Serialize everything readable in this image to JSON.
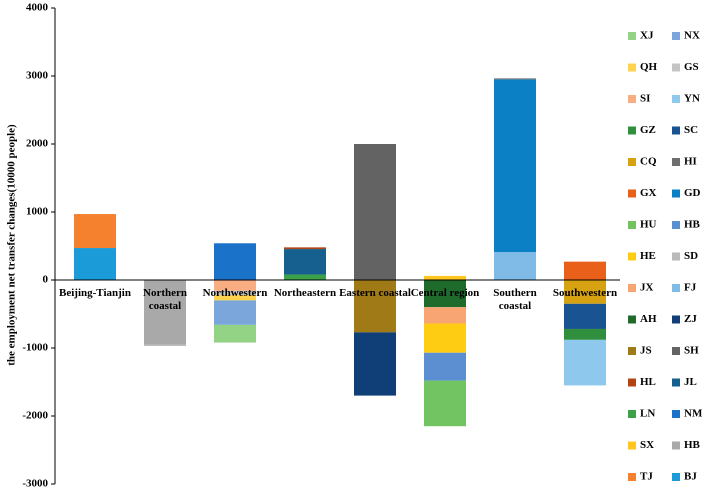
{
  "chart_data": {
    "type": "bar",
    "stacked": true,
    "ylabel": "the employment net transfer changes(10000 people)",
    "ylim": [
      -3000,
      4000
    ],
    "yticks": [
      -3000,
      -2000,
      -1000,
      0,
      1000,
      2000,
      3000,
      4000
    ],
    "categories": [
      "Beijing-Tianjin",
      "Northern coastal",
      "Northwestern",
      "Northeastern",
      "Eastern coastal",
      "Central region",
      "Southern coastal",
      "Southwestern"
    ],
    "series": [
      {
        "name": "XJ",
        "color": "#92d385",
        "values": [
          null,
          null,
          -260,
          null,
          null,
          null,
          null,
          null
        ]
      },
      {
        "name": "NX",
        "color": "#7aa6dc",
        "values": [
          null,
          null,
          -360,
          null,
          null,
          null,
          null,
          null
        ]
      },
      {
        "name": "QH",
        "color": "#ffd34d",
        "values": [
          null,
          null,
          -80,
          null,
          null,
          null,
          null,
          null
        ]
      },
      {
        "name": "GS",
        "color": "#c4c4c4",
        "values": [
          null,
          null,
          -60,
          null,
          null,
          null,
          null,
          null
        ]
      },
      {
        "name": "SI",
        "color": "#f8ad82",
        "values": [
          null,
          null,
          -160,
          null,
          null,
          null,
          null,
          null
        ]
      },
      {
        "name": "YN",
        "color": "#8ec8ec",
        "values": [
          null,
          null,
          null,
          null,
          null,
          null,
          null,
          -670
        ]
      },
      {
        "name": "GZ",
        "color": "#2f8f3c",
        "values": [
          null,
          null,
          null,
          null,
          null,
          null,
          null,
          -160
        ]
      },
      {
        "name": "SC",
        "color": "#1a5391",
        "values": [
          null,
          null,
          null,
          null,
          null,
          null,
          null,
          -370
        ]
      },
      {
        "name": "CQ",
        "color": "#d6a212",
        "values": [
          null,
          null,
          null,
          null,
          null,
          null,
          null,
          -350
        ]
      },
      {
        "name": "HI",
        "color": "#6f6f6f",
        "values": [
          null,
          null,
          null,
          null,
          null,
          null,
          15,
          null
        ]
      },
      {
        "name": "GX",
        "color": "#e8601a",
        "values": [
          null,
          null,
          null,
          null,
          null,
          null,
          null,
          270
        ]
      },
      {
        "name": "GD",
        "color": "#0b80c5",
        "values": [
          null,
          null,
          null,
          null,
          null,
          null,
          2540,
          null
        ]
      },
      {
        "name": "HU",
        "color": "#72c463",
        "values": [
          null,
          null,
          null,
          null,
          null,
          -670,
          null,
          null
        ]
      },
      {
        "name": "HB",
        "color": "#5b8fd2",
        "values": [
          null,
          null,
          null,
          null,
          null,
          -410,
          null,
          null
        ]
      },
      {
        "name": "HE",
        "color": "#ffcc14",
        "values": [
          null,
          null,
          null,
          null,
          null,
          -430,
          null,
          null
        ]
      },
      {
        "name": "SD",
        "color": "#bababa",
        "values": [
          null,
          -20,
          null,
          null,
          null,
          null,
          null,
          null
        ]
      },
      {
        "name": "JX",
        "color": "#f8a473",
        "values": [
          null,
          null,
          null,
          null,
          null,
          -240,
          null,
          null
        ]
      },
      {
        "name": "FJ",
        "color": "#80bbe8",
        "values": [
          null,
          null,
          null,
          null,
          null,
          null,
          410,
          null
        ]
      },
      {
        "name": "AH",
        "color": "#1f6b2c",
        "values": [
          null,
          null,
          null,
          null,
          null,
          -400,
          null,
          null
        ]
      },
      {
        "name": "ZJ",
        "color": "#103f78",
        "values": [
          null,
          null,
          null,
          null,
          -930,
          null,
          null,
          null
        ]
      },
      {
        "name": "JS",
        "color": "#a07a16",
        "values": [
          null,
          null,
          null,
          null,
          -770,
          null,
          null,
          null
        ]
      },
      {
        "name": "SH",
        "color": "#636363",
        "values": [
          null,
          null,
          null,
          null,
          2000,
          null,
          null,
          null
        ]
      },
      {
        "name": "HL",
        "color": "#b04412",
        "values": [
          null,
          null,
          null,
          25,
          null,
          null,
          null,
          null
        ]
      },
      {
        "name": "JL",
        "color": "#16608f",
        "values": [
          null,
          null,
          null,
          375,
          null,
          null,
          null,
          null
        ]
      },
      {
        "name": "LN",
        "color": "#3ba24a",
        "values": [
          null,
          null,
          null,
          80,
          null,
          null,
          null,
          null
        ]
      },
      {
        "name": "NM",
        "color": "#1a72c9",
        "values": [
          null,
          null,
          540,
          null,
          null,
          null,
          null,
          null
        ]
      },
      {
        "name": "SX",
        "color": "#ffc61f",
        "values": [
          null,
          null,
          null,
          null,
          null,
          60,
          null,
          null
        ]
      },
      {
        "name": "HB",
        "color": "#a9a9a9",
        "values": [
          null,
          -950,
          null,
          null,
          null,
          null,
          null,
          null
        ]
      },
      {
        "name": "TJ",
        "color": "#f5812f",
        "values": [
          500,
          null,
          null,
          null,
          null,
          null,
          null,
          null
        ]
      },
      {
        "name": "BJ",
        "color": "#1b9bd7",
        "values": [
          470,
          null,
          null,
          null,
          null,
          null,
          null,
          null
        ]
      }
    ]
  }
}
